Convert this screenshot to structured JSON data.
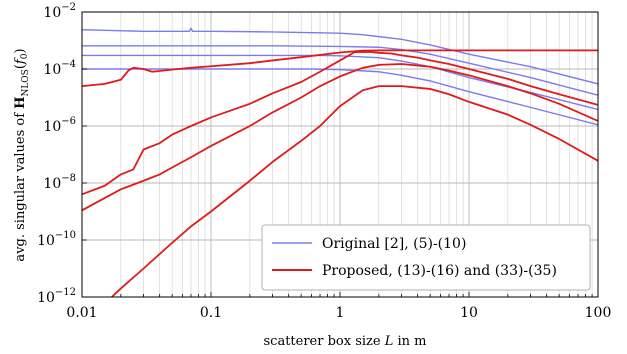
{
  "chart_data": {
    "type": "line",
    "title": "",
    "xlabel": "scatterer box size L in m",
    "ylabel": "avg. singular values of H_NLOS(f_0)",
    "xscale": "log",
    "yscale": "log",
    "xlim": [
      0.01,
      100
    ],
    "ylim": [
      1e-12,
      0.01
    ],
    "grid": "on (major and minor, vertical minor lines)",
    "legend_position": "bottom-right",
    "x_tick_labels": [
      "0.01",
      "0.1",
      "1",
      "10",
      "100"
    ],
    "y_tick_labels": [
      {
        "base": "10",
        "exp": "−12",
        "value": 1e-12
      },
      {
        "base": "10",
        "exp": "−10",
        "value": 1e-10
      },
      {
        "base": "10",
        "exp": "−8",
        "value": 1e-08
      },
      {
        "base": "10",
        "exp": "−6",
        "value": 1e-06
      },
      {
        "base": "10",
        "exp": "−4",
        "value": 0.0001
      },
      {
        "base": "10",
        "exp": "−2",
        "value": 0.01
      }
    ],
    "legend": [
      {
        "label": "Original [2], (5)-(10)",
        "color": "#7b7bf0"
      },
      {
        "label": "Proposed, (13)-(16) and (33)-(35)",
        "color": "#e01a1a"
      }
    ],
    "series": [
      {
        "group": "original",
        "color": "#7b7bf0",
        "x": [
          0.01,
          0.03,
          0.05,
          0.068,
          0.07,
          0.072,
          0.1,
          0.3,
          1,
          1.5,
          3,
          5,
          10,
          30,
          100
        ],
        "y": [
          0.0024,
          0.0021,
          0.0021,
          0.0021,
          0.0027,
          0.0021,
          0.0021,
          0.002,
          0.0018,
          0.0016,
          0.0011,
          0.0007,
          0.00033,
          0.00012,
          3e-05
        ]
      },
      {
        "group": "original",
        "color": "#7b7bf0",
        "x": [
          0.01,
          0.1,
          0.3,
          1,
          2,
          3,
          5,
          10,
          30,
          100
        ],
        "y": [
          0.00065,
          0.00065,
          0.00065,
          0.00062,
          0.00058,
          0.00048,
          0.00033,
          0.00016,
          5e-05,
          1.2e-05
        ]
      },
      {
        "group": "original",
        "color": "#7b7bf0",
        "x": [
          0.01,
          0.1,
          0.3,
          0.7,
          1,
          2,
          3,
          5,
          10,
          30,
          100
        ],
        "y": [
          0.0003,
          0.0003,
          0.0003,
          0.0003,
          0.00029,
          0.00025,
          0.00019,
          0.00012,
          5e-05,
          1.5e-05,
          3.8e-06
        ]
      },
      {
        "group": "original",
        "color": "#7b7bf0",
        "x": [
          0.01,
          0.1,
          0.3,
          0.6,
          1,
          2,
          3,
          5,
          10,
          30,
          100
        ],
        "y": [
          0.0001,
          0.0001,
          0.0001,
          0.0001,
          9.5e-05,
          8e-05,
          6e-05,
          3.8e-05,
          1.6e-05,
          4.5e-06,
          1.1e-06
        ]
      },
      {
        "group": "proposed",
        "color": "#e01a1a",
        "x": [
          0.01,
          0.015,
          0.02,
          0.023,
          0.025,
          0.03,
          0.035,
          0.05,
          0.07,
          0.1,
          0.2,
          0.3,
          0.5,
          1,
          1.5,
          2,
          3,
          5,
          10,
          30,
          100
        ],
        "y": [
          2.5e-05,
          3e-05,
          4.2e-05,
          9e-05,
          0.00011,
          0.0001,
          8e-05,
          9.5e-05,
          0.00011,
          0.000125,
          0.00016,
          0.0002,
          0.00026,
          0.00038,
          0.00044,
          0.00045,
          0.00045,
          0.00045,
          0.00045,
          0.00045,
          0.00045
        ]
      },
      {
        "group": "proposed",
        "color": "#e01a1a",
        "x": [
          0.01,
          0.015,
          0.02,
          0.025,
          0.03,
          0.04,
          0.05,
          0.07,
          0.1,
          0.2,
          0.3,
          0.5,
          0.7,
          1,
          1.3,
          1.7,
          2,
          2.5,
          3,
          4,
          5,
          7,
          10,
          20,
          30,
          50,
          100
        ],
        "y": [
          4e-09,
          8e-09,
          2e-08,
          3e-08,
          1.5e-07,
          2.5e-07,
          5e-07,
          1e-06,
          2e-06,
          6e-06,
          1.4e-05,
          3.5e-05,
          8e-05,
          0.0002,
          0.00039,
          0.0004,
          0.00037,
          0.00035,
          0.0003,
          0.00025,
          0.0002,
          0.00015,
          0.0001,
          4.5e-05,
          2.5e-05,
          1.3e-05,
          5.5e-06
        ]
      },
      {
        "group": "proposed",
        "color": "#e01a1a",
        "x": [
          0.01,
          0.02,
          0.03,
          0.04,
          0.05,
          0.07,
          0.1,
          0.2,
          0.3,
          0.5,
          0.7,
          1,
          1.5,
          2,
          3,
          5,
          7,
          10,
          20,
          30,
          50,
          100
        ],
        "y": [
          1.1e-09,
          6e-09,
          1.2e-08,
          2e-08,
          3.5e-08,
          8e-08,
          2e-07,
          1e-06,
          3e-06,
          1e-05,
          2.5e-05,
          5.5e-05,
          0.00011,
          0.00014,
          0.00015,
          0.00012,
          8.8e-05,
          6e-05,
          2.5e-05,
          1.4e-05,
          6e-06,
          1.5e-06
        ]
      },
      {
        "group": "proposed",
        "color": "#e01a1a",
        "x": [
          0.017,
          0.02,
          0.03,
          0.05,
          0.07,
          0.1,
          0.2,
          0.3,
          0.5,
          0.7,
          1,
          1.5,
          2,
          3,
          5,
          7,
          10,
          20,
          30,
          50,
          100
        ],
        "y": [
          1e-12,
          2e-12,
          1e-11,
          8e-11,
          3e-10,
          1e-09,
          1.2e-08,
          5.5e-08,
          3e-07,
          1e-06,
          5e-06,
          1.8e-05,
          2.5e-05,
          2.5e-05,
          2e-05,
          1.3e-05,
          7e-06,
          2.5e-06,
          1.1e-06,
          3.5e-07,
          6e-08
        ]
      }
    ]
  }
}
